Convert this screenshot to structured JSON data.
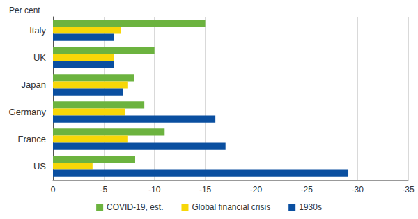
{
  "chart_data": {
    "type": "bar",
    "orientation": "horizontal",
    "xlabel": "Per cent",
    "categories": [
      "Italy",
      "UK",
      "Japan",
      "Germany",
      "France",
      "US"
    ],
    "series": [
      {
        "name": "COVID-19, est.",
        "color": "#6cb33f",
        "values": [
          -15.0,
          -10.0,
          -8.0,
          -9.0,
          -11.0,
          -8.1
        ]
      },
      {
        "name": "Global financial crisis",
        "color": "#f7d708",
        "values": [
          -6.7,
          -6.0,
          -7.4,
          -7.1,
          -7.4,
          -3.9
        ]
      },
      {
        "name": "1930s",
        "color": "#0a4fa0",
        "values": [
          -6.0,
          -6.0,
          -6.9,
          -16.0,
          -17.0,
          -29.1
        ]
      }
    ],
    "xlim": [
      0,
      -35
    ],
    "xticks": [
      0,
      -5,
      -10,
      -15,
      -20,
      -25,
      -30,
      -35
    ],
    "grid": true,
    "legend": "bottom"
  }
}
